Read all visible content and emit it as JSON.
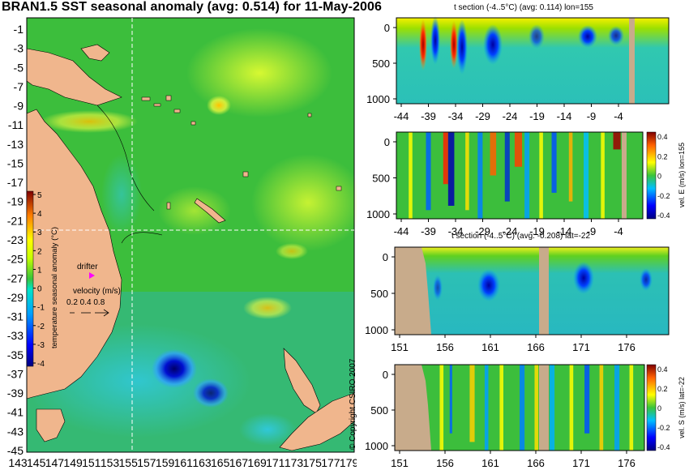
{
  "title": "BRAN1.5 SST seasonal anomaly (avg: 0.514) for 11-May-2006",
  "map": {
    "lat_labels": [
      "-1",
      "-3",
      "-5",
      "-7",
      "-9",
      "-11",
      "-13",
      "-15",
      "-17",
      "-19",
      "-21",
      "-23",
      "-25",
      "-27",
      "-29",
      "-31",
      "-33",
      "-35",
      "-37",
      "-39",
      "-41",
      "-43",
      "-45"
    ],
    "lon_labels": [
      "143",
      "145",
      "147",
      "149",
      "151",
      "153",
      "155",
      "157",
      "159",
      "161",
      "163",
      "165",
      "167",
      "169",
      "171",
      "173",
      "175",
      "177",
      "179"
    ],
    "colorbar": {
      "label": "temperature seasonal anomaly (°C)",
      "ticks": [
        "5",
        "4",
        "3",
        "2",
        "1",
        "0",
        "-1",
        "-2",
        "-3",
        "-4"
      ]
    },
    "drifter_label": "drifter",
    "velocity_label": "velocity (m/s)",
    "velocity_ticks": "0.2 0.4 0.8",
    "colors": {
      "ocean": "#39b93a",
      "land": "#f0b68d",
      "crosshair": "#ffffff",
      "drifter": "#ff00ff"
    }
  },
  "panels": [
    {
      "title": "t section (-4..5°C) (avg: 0.114) lon=155",
      "y_ticks": [
        "0",
        "500",
        "1000"
      ],
      "x_ticks": [
        "-44",
        "-39",
        "-34",
        "-29",
        "-24",
        "-19",
        "-14",
        "-9",
        "-4"
      ]
    },
    {
      "title": "",
      "y_ticks": [
        "0",
        "500",
        "1000"
      ],
      "x_ticks": [
        "-44",
        "-39",
        "-34",
        "-29",
        "-24",
        "-19",
        "-14",
        "-9",
        "-4"
      ],
      "colorbar_label": "vel. E (m/s) lon=155",
      "colorbar_ticks": [
        "0.4",
        "0.2",
        "0",
        "-0.2",
        "-0.4"
      ]
    },
    {
      "title": "t section (-4..5°C) (avg: -0.208) lat=-22",
      "y_ticks": [
        "0",
        "500",
        "1000"
      ],
      "x_ticks": [
        "151",
        "156",
        "161",
        "166",
        "171",
        "176"
      ]
    },
    {
      "title": "",
      "y_ticks": [
        "0",
        "500",
        "1000"
      ],
      "x_ticks": [
        "151",
        "156",
        "161",
        "166",
        "171",
        "176"
      ],
      "colorbar_label": "vel. S (m/s) lat=-22",
      "colorbar_ticks": [
        "0.4",
        "0.2",
        "0",
        "-0.2",
        "-0.4"
      ]
    }
  ],
  "copyright": "© Copyright CSIRO 2007"
}
